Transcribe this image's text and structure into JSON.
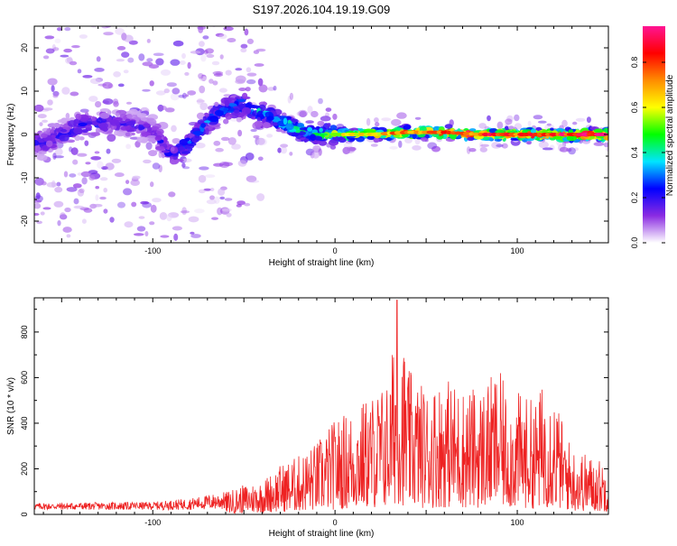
{
  "figure_title": "S197.2026.104.19.19.G09",
  "colorbar": {
    "label": "Normalized spectral amplitude",
    "ticks": [
      "0.0",
      "0.2",
      "0.4",
      "0.6",
      "0.8"
    ],
    "tick_values": [
      0.0,
      0.2,
      0.4,
      0.6,
      0.8
    ],
    "range": [
      0,
      0.96
    ],
    "colors": [
      "#ffffff",
      "#8a2be2",
      "#0000ff",
      "#00e5ff",
      "#00ff00",
      "#ffff00",
      "#ff8c00",
      "#ff0000",
      "#ff1493"
    ]
  },
  "chart_data": [
    {
      "type": "heatmap",
      "title": "S197.2026.104.19.19.G09",
      "xlabel": "Height of straight line (km)",
      "ylabel": "Frequency (Hz)",
      "xlim": [
        -165,
        150
      ],
      "ylim": [
        -25,
        25
      ],
      "xticks": [
        -100,
        0,
        100
      ],
      "xtick_labels": [
        "-100",
        "0",
        "100"
      ],
      "yticks": [
        -20,
        -10,
        0,
        10,
        20
      ],
      "ytick_labels": [
        "-20",
        "-10",
        "0",
        "10",
        "20"
      ],
      "ridge": {
        "x": [
          -160,
          -140,
          -120,
          -100,
          -90,
          -80,
          -70,
          -60,
          -50,
          -40,
          -30,
          -20,
          -10,
          0,
          20,
          40,
          60,
          80,
          100,
          120,
          148
        ],
        "frequency": [
          -2,
          2,
          3,
          1,
          -5,
          -2,
          3,
          6,
          7,
          5,
          3,
          1,
          0,
          0,
          0,
          0.5,
          0.5,
          0,
          0,
          0,
          0
        ],
        "peak_amplitude": [
          0.2,
          0.22,
          0.2,
          0.18,
          0.25,
          0.3,
          0.3,
          0.3,
          0.32,
          0.38,
          0.42,
          0.45,
          0.5,
          0.6,
          0.7,
          0.8,
          0.85,
          0.88,
          0.9,
          0.92,
          0.93
        ]
      },
      "colorbar_label": "Normalized spectral amplitude"
    },
    {
      "type": "line",
      "xlabel": "Height of straight line (km)",
      "ylabel": "SNR (10 * v/v)",
      "xlim": [
        -165,
        150
      ],
      "ylim": [
        0,
        950
      ],
      "xticks": [
        -100,
        0,
        100
      ],
      "xtick_labels": [
        "-100",
        "0",
        "100"
      ],
      "yticks": [
        0,
        200,
        400,
        600,
        800
      ],
      "ytick_labels": [
        "0",
        "200",
        "400",
        "600",
        "800"
      ],
      "series": [
        {
          "name": "SNR",
          "color": "#ee2222",
          "envelope_x": [
            -165,
            -100,
            -80,
            -60,
            -50,
            -40,
            -30,
            -20,
            -10,
            0,
            10,
            20,
            30,
            34,
            40,
            50,
            60,
            70,
            80,
            90,
            95,
            100,
            110,
            115,
            120,
            125,
            130,
            140,
            150
          ],
          "envelope_y": [
            50,
            55,
            70,
            100,
            130,
            150,
            220,
            260,
            320,
            420,
            470,
            530,
            600,
            940,
            640,
            560,
            610,
            560,
            560,
            640,
            520,
            540,
            500,
            600,
            560,
            400,
            300,
            260,
            230
          ],
          "peak": {
            "x": 34,
            "y": 940
          }
        }
      ]
    }
  ]
}
